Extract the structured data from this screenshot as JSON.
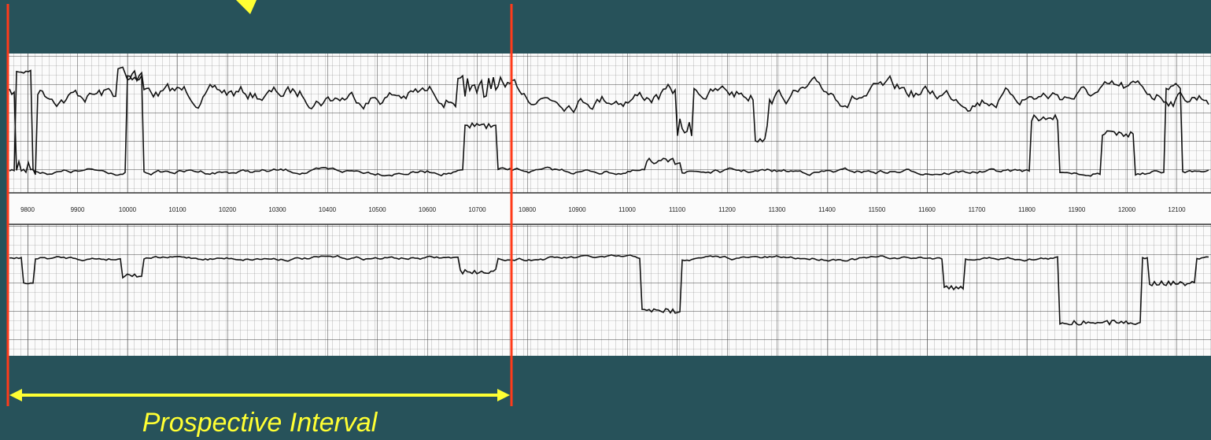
{
  "log": {
    "depth_labels": [
      "9800",
      "9900",
      "10000",
      "10100",
      "10200",
      "10300",
      "10400",
      "10500",
      "10600",
      "10700",
      "10800",
      "10900",
      "11000",
      "11100",
      "11200",
      "11300",
      "11400",
      "11500",
      "11600",
      "11700",
      "11800",
      "11900",
      "12000",
      "12100"
    ]
  },
  "annotation": {
    "label": "Prospective Interval"
  }
}
